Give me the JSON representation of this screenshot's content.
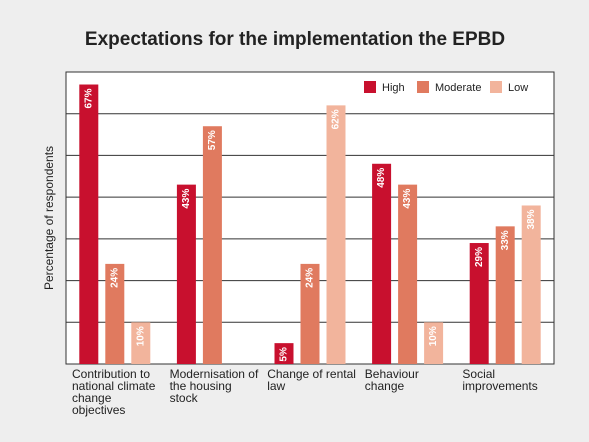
{
  "chart_data": {
    "type": "bar",
    "title": "Expectations for the implementation the EPBD",
    "ylabel": "Percentage of respondents",
    "categories": [
      "Contribution to national climate change objectives",
      "Modernisation of the housing stock",
      "Change of rental law",
      "Behaviour change",
      "Social improvements"
    ],
    "series": [
      {
        "name": "High",
        "color": "#c8102e",
        "values": [
          67,
          43,
          5,
          48,
          29
        ],
        "value_labels": [
          "67%",
          "43%",
          "5%",
          "48%",
          "29%"
        ]
      },
      {
        "name": "Moderate",
        "color": "#e07a5f",
        "values": [
          24,
          57,
          24,
          43,
          33
        ],
        "value_labels": [
          "24%",
          "57%",
          "24%",
          "43%",
          "33%"
        ]
      },
      {
        "name": "Low",
        "color": "#f2b49c",
        "values": [
          10,
          null,
          62,
          10,
          38
        ],
        "value_labels": [
          "10%",
          null,
          "62%",
          "10%",
          "38%"
        ]
      }
    ],
    "ylim": [
      0,
      70
    ],
    "yticks": [
      0,
      10,
      20,
      30,
      40,
      50,
      60,
      70
    ],
    "grid": true,
    "legend": "top-right"
  }
}
